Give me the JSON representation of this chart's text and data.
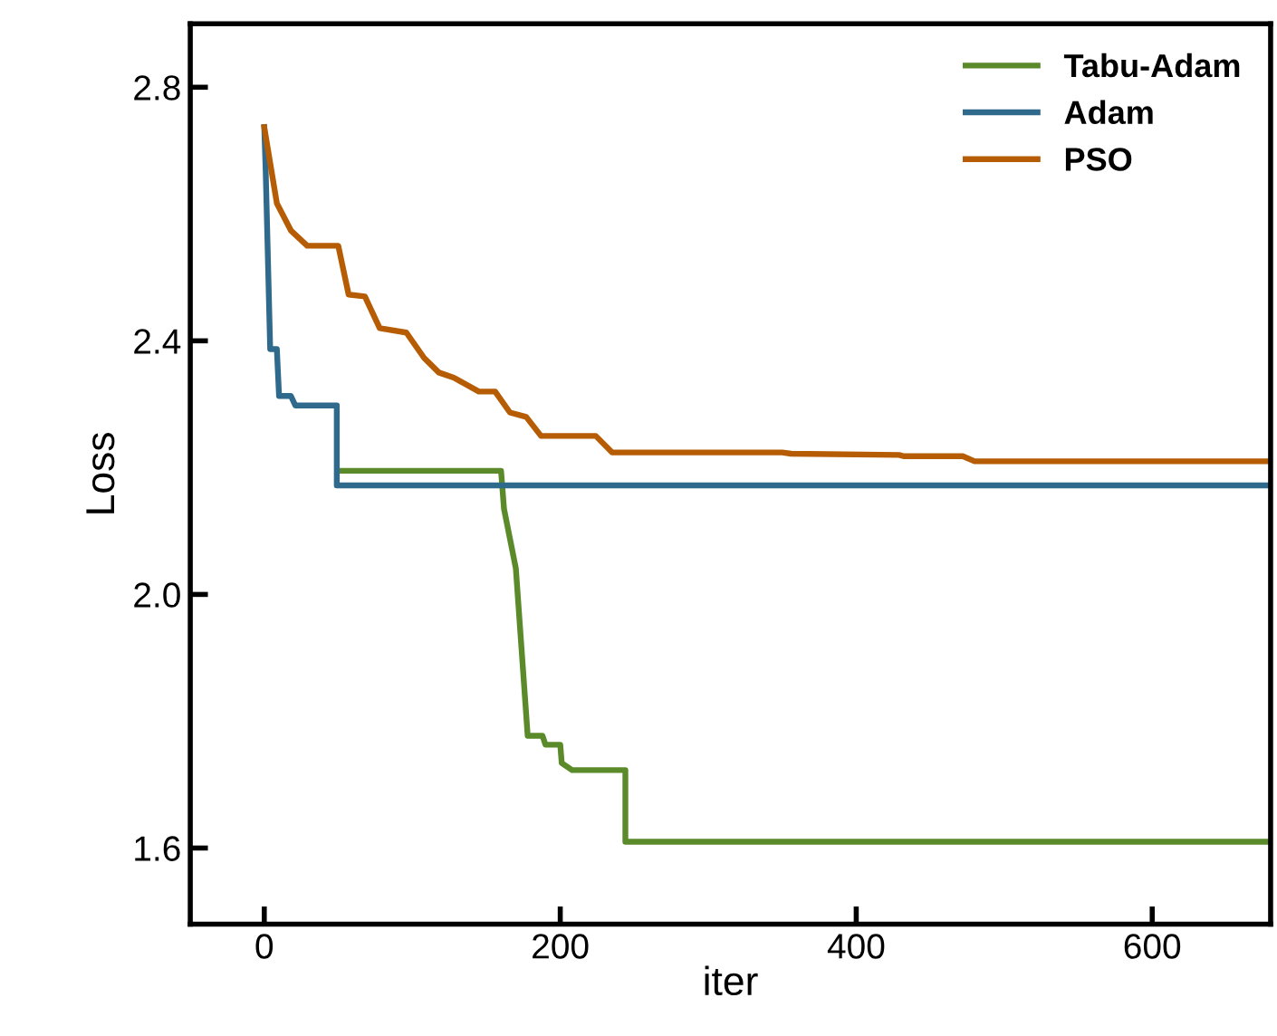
{
  "chart_data": {
    "type": "line",
    "xlabel": "iter",
    "ylabel": "Loss",
    "xlim": [
      -50,
      680
    ],
    "ylim": [
      1.48,
      2.9
    ],
    "xticks": [
      0,
      200,
      400,
      600
    ],
    "yticks": [
      {
        "value": 1.6,
        "label": "1.6"
      },
      {
        "value": 2.0,
        "label": "2.0"
      },
      {
        "value": 2.4,
        "label": "2.4"
      },
      {
        "value": 2.8,
        "label": "2.8"
      }
    ],
    "grid": false,
    "legend": "top right",
    "marker": "none",
    "line_style": "solid",
    "series": [
      {
        "name": "Tabu-Adam",
        "color": "#5b8a2b",
        "x": [
          50,
          160,
          162,
          170,
          178,
          188,
          190,
          200,
          201,
          208,
          244,
          244,
          680
        ],
        "values": [
          2.195,
          2.195,
          2.135,
          2.041,
          1.777,
          1.777,
          1.763,
          1.763,
          1.734,
          1.723,
          1.723,
          1.61,
          1.61
        ]
      },
      {
        "name": "Adam",
        "color": "#2f6a8d",
        "x": [
          0,
          1,
          4,
          8.5,
          10,
          18,
          21,
          49,
          49,
          680
        ],
        "values": [
          2.737,
          2.665,
          2.387,
          2.387,
          2.313,
          2.313,
          2.298,
          2.298,
          2.172,
          2.172
        ]
      },
      {
        "name": "PSO",
        "color": "#b65c05",
        "x": [
          0,
          8.5,
          18,
          29,
          50,
          57,
          68,
          78,
          96,
          108,
          118,
          128,
          145,
          156,
          166,
          177,
          187,
          224,
          235,
          350,
          356,
          429,
          432,
          472,
          480,
          680
        ],
        "values": [
          2.737,
          2.617,
          2.574,
          2.55,
          2.55,
          2.473,
          2.47,
          2.42,
          2.413,
          2.373,
          2.35,
          2.342,
          2.32,
          2.32,
          2.287,
          2.28,
          2.25,
          2.25,
          2.224,
          2.224,
          2.222,
          2.22,
          2.218,
          2.218,
          2.21,
          2.21
        ]
      }
    ]
  }
}
